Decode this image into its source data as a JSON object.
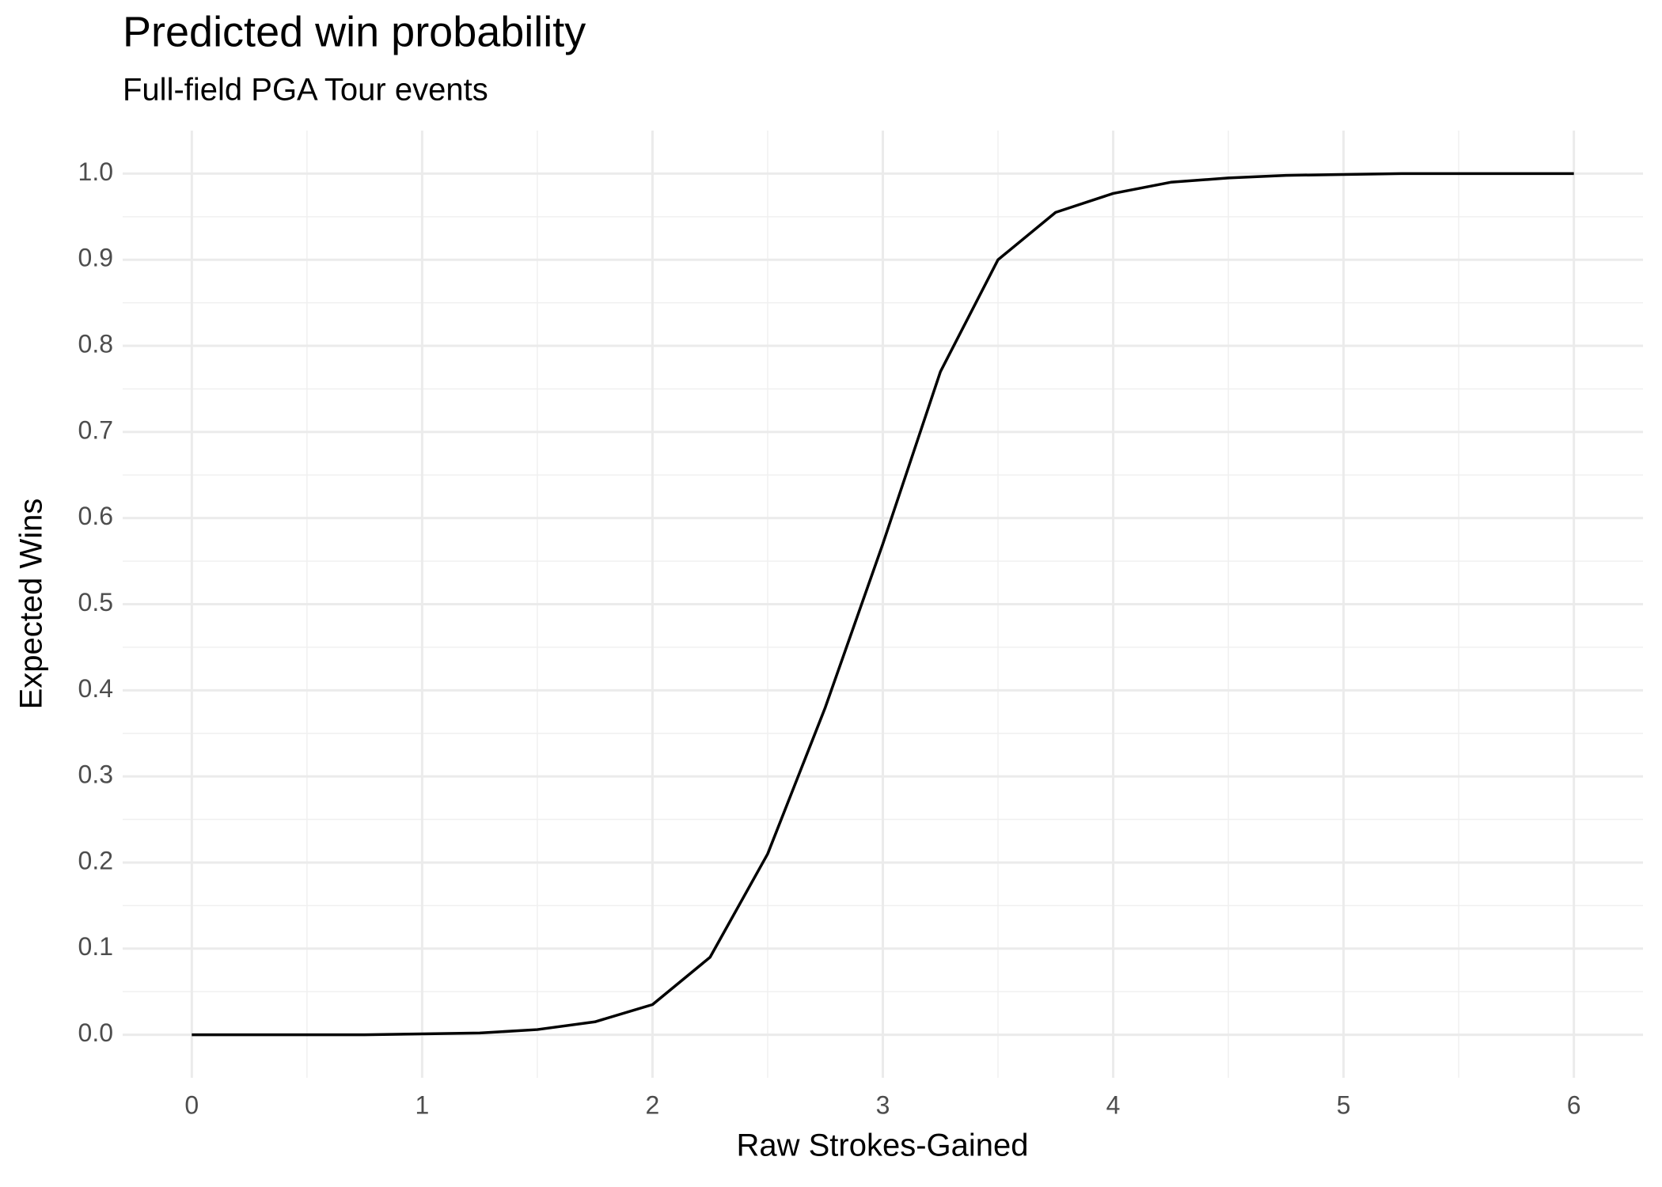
{
  "chart_data": {
    "type": "line",
    "title": "Predicted win probability",
    "subtitle": "Full-field PGA Tour events",
    "x_label": "Raw Strokes-Gained",
    "y_label": "Expected Wins",
    "x": [
      0,
      0.25,
      0.5,
      0.75,
      1,
      1.25,
      1.5,
      1.75,
      2,
      2.25,
      2.5,
      2.75,
      3,
      3.25,
      3.5,
      3.75,
      4,
      4.25,
      4.5,
      4.75,
      5,
      5.25,
      5.5,
      5.75,
      6
    ],
    "series": [
      {
        "color": "#000000",
        "values": [
          0,
          0,
          0,
          0,
          0.001,
          0.002,
          0.006,
          0.015,
          0.035,
          0.09,
          0.21,
          0.38,
          0.57,
          0.77,
          0.9,
          0.955,
          0.977,
          0.99,
          0.995,
          0.998,
          0.999,
          1,
          1,
          1,
          1
        ]
      }
    ],
    "xlim": [
      -0.3,
      6.3
    ],
    "xticks": [
      0,
      1,
      2,
      3,
      4,
      5,
      6
    ],
    "ylim": [
      -0.05,
      1.05
    ],
    "yticks": [
      {
        "value": 0,
        "label": "0.0"
      },
      {
        "value": 0.1,
        "label": "0.1"
      },
      {
        "value": 0.2,
        "label": "0.2"
      },
      {
        "value": 0.3,
        "label": "0.3"
      },
      {
        "value": 0.4,
        "label": "0.4"
      },
      {
        "value": 0.5,
        "label": "0.5"
      },
      {
        "value": 0.6,
        "label": "0.6"
      },
      {
        "value": 0.7,
        "label": "0.7"
      },
      {
        "value": 0.8,
        "label": "0.8"
      },
      {
        "value": 0.9,
        "label": "0.9"
      },
      {
        "value": 1,
        "label": "1.0"
      }
    ],
    "grid": true
  }
}
